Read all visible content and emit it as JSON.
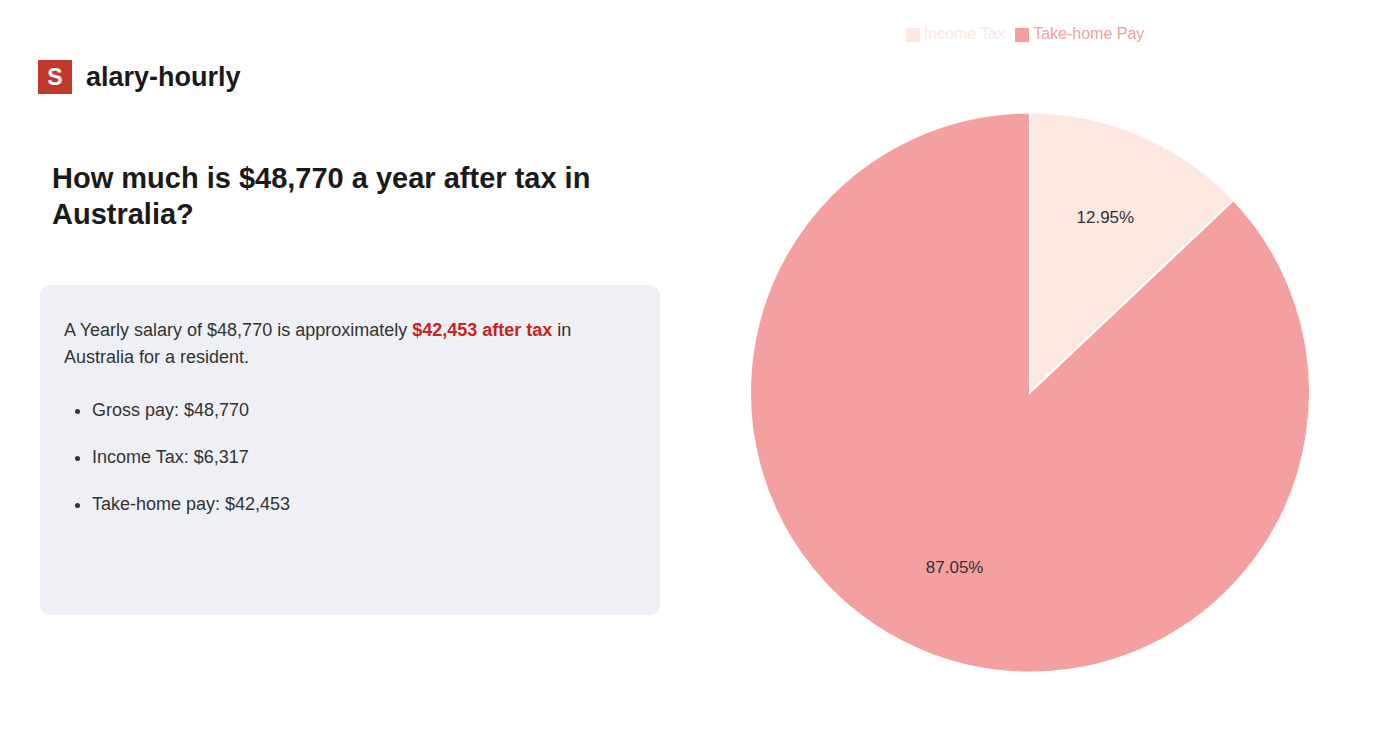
{
  "chart_data": {
    "type": "pie",
    "title": "How much is $48,770 a year after tax in Australia?",
    "categories": [
      "Income Tax",
      "Take-home Pay"
    ],
    "values": [
      12.95,
      87.05
    ],
    "value_labels": [
      "12.95%",
      "87.05%"
    ],
    "colors": [
      "#fce8df",
      "#f5a0a0"
    ],
    "data_labels": true,
    "legend": "top",
    "annotations": [
      {
        "text": "S",
        "color": "#c0392b"
      },
      {
        "text": "alary-hourly"
      },
      {
        "text": "A Yearly salary of $48,770 is approximately "
      },
      {
        "text": "$42,453 after tax",
        "color": "#cc1f1f"
      },
      {
        "text": " in"
      },
      {
        "text": "Australia for a resident."
      },
      {
        "text": "Gross pay: $48,770"
      },
      {
        "text": "Income Tax: $6,317"
      },
      {
        "text": "Take-home pay: $42,453"
      }
    ]
  }
}
